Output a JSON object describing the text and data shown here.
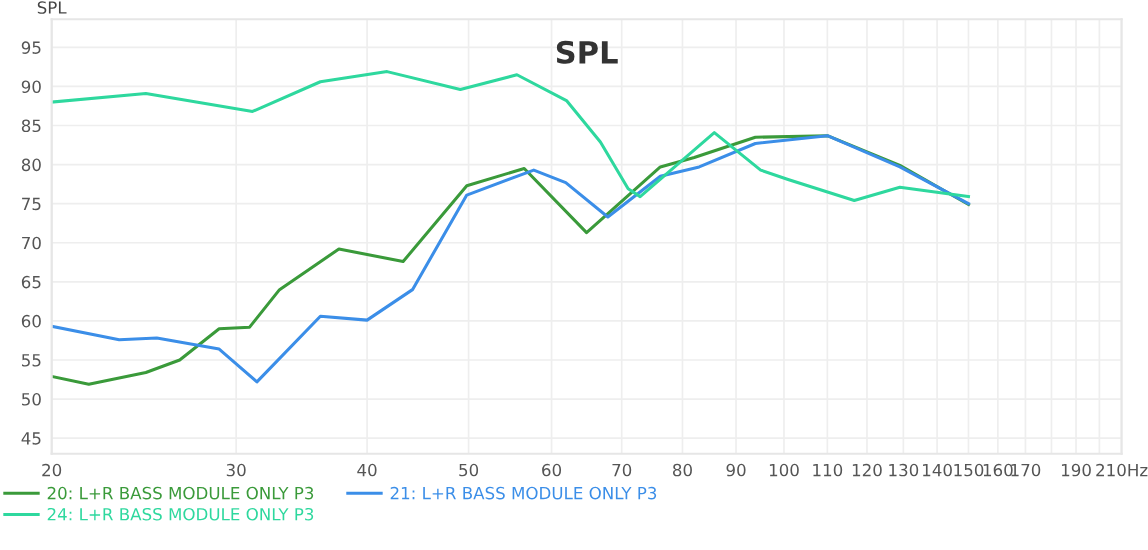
{
  "chart_data": {
    "type": "line",
    "title": "SPL",
    "ylabel": "SPL",
    "log": "x",
    "xlim": [
      20,
      210
    ],
    "xticks": [
      20,
      30,
      40,
      50,
      60,
      70,
      80,
      90,
      100,
      110,
      120,
      130,
      140,
      150,
      160,
      170,
      {
        "value": 180,
        "label": null
      },
      190,
      {
        "value": 200,
        "label": null
      },
      {
        "value": 210,
        "label": "210Hz"
      }
    ],
    "ylim": [
      43,
      98.6
    ],
    "yticks": [
      45,
      50,
      55,
      60,
      65,
      70,
      75,
      80,
      85,
      90,
      95
    ],
    "grid": true,
    "legend": "bottom",
    "line_style": "solid",
    "marker": "none",
    "series": [
      {
        "name": "20: L+R BASS MODULE ONLY P3",
        "color": "#3a9a3a",
        "x": [
          20,
          21.7,
          24.6,
          26.5,
          28.9,
          30.9,
          33.0,
          37.6,
          43.3,
          49.8,
          56.5,
          64.8,
          76.2,
          82.1,
          93.9,
          110,
          129,
          150
        ],
        "values": [
          52.9,
          51.9,
          53.4,
          55.0,
          59.0,
          59.2,
          64.0,
          69.2,
          67.6,
          77.3,
          79.5,
          71.3,
          79.7,
          80.9,
          83.5,
          83.7,
          79.9,
          74.9
        ]
      },
      {
        "name": "21: L+R BASS MODULE ONLY P3",
        "color": "#3b8ee8",
        "x": [
          20,
          23.2,
          25.2,
          28.9,
          31.4,
          36.1,
          40.0,
          44.2,
          49.8,
          57.7,
          61.9,
          67.9,
          76.2,
          83,
          93.9,
          110,
          129,
          150
        ],
        "values": [
          59.3,
          57.6,
          57.8,
          56.4,
          52.2,
          60.6,
          60.1,
          64.0,
          76.1,
          79.3,
          77.7,
          73.3,
          78.5,
          79.7,
          82.7,
          83.7,
          79.7,
          75.0
        ]
      },
      {
        "name": "24: L+R BASS MODULE ONLY P3",
        "color": "#2ed89e",
        "x": [
          20,
          24.6,
          31.1,
          36.1,
          41.8,
          49.1,
          55.6,
          62,
          66.8,
          71,
          72.9,
          85.8,
          95,
          100.9,
          116.7,
          129,
          150
        ],
        "values": [
          88.0,
          89.1,
          86.8,
          90.6,
          91.9,
          89.6,
          91.5,
          88.2,
          82.9,
          76.9,
          75.9,
          84.1,
          79.3,
          78.1,
          75.4,
          77.1,
          75.9
        ]
      }
    ]
  }
}
